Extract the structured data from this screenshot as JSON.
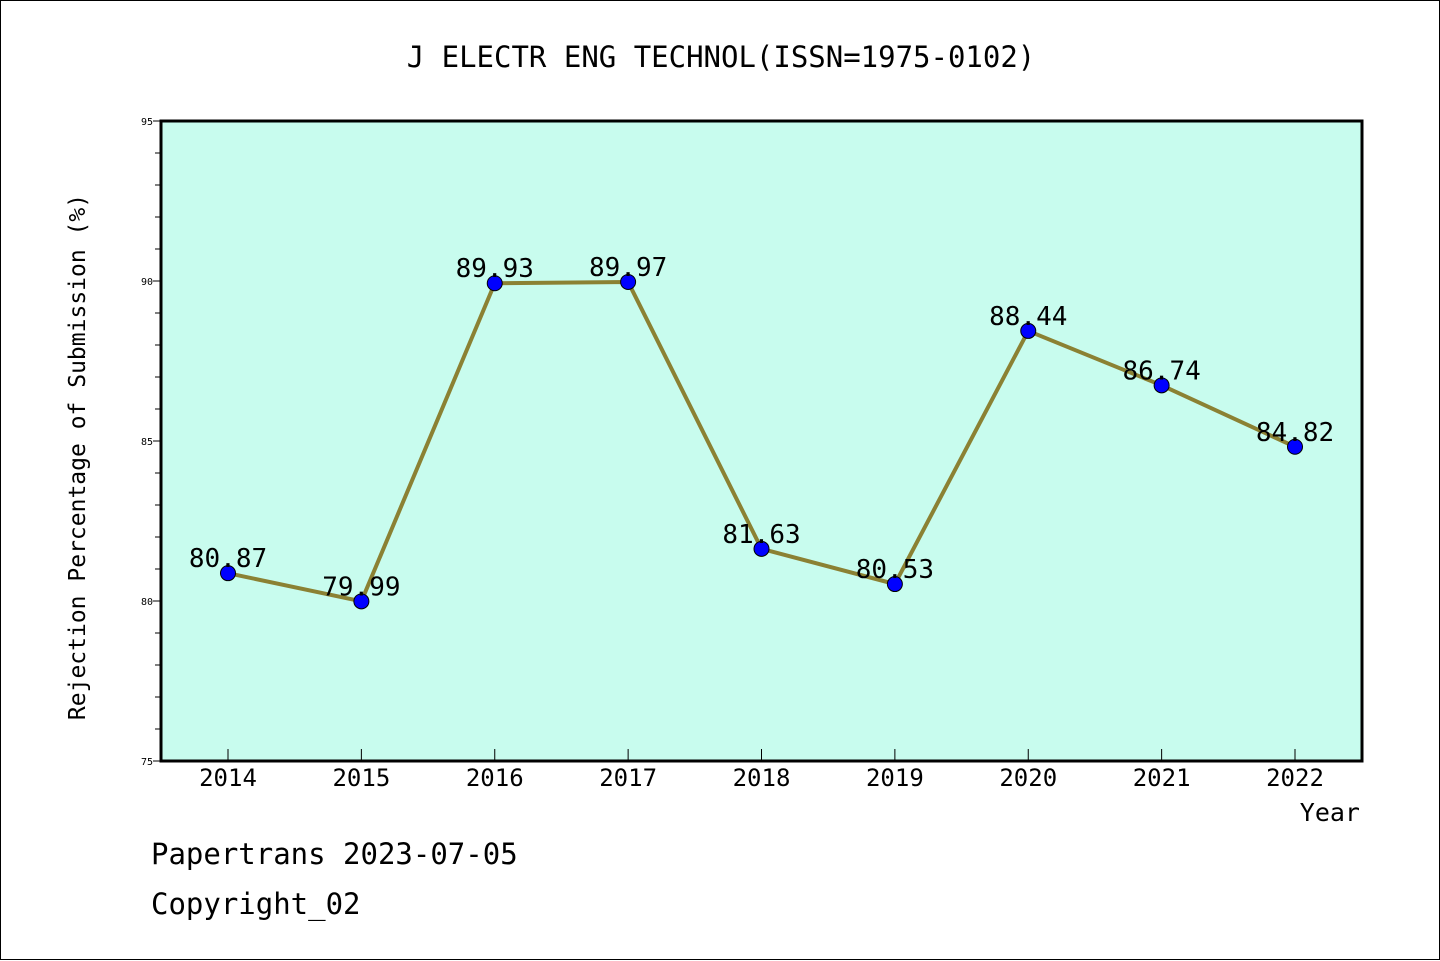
{
  "chart_data": {
    "type": "line",
    "title": "J ELECTR ENG TECHNOL(ISSN=1975-0102)",
    "xlabel": "Year",
    "ylabel": "Rejection Percentage of Submission (%)",
    "categories": [
      "2014",
      "2015",
      "2016",
      "2017",
      "2018",
      "2019",
      "2020",
      "2021",
      "2022"
    ],
    "series": [
      {
        "values": [
          80.87,
          79.99,
          89.93,
          89.97,
          81.63,
          80.53,
          88.44,
          86.74,
          84.82
        ]
      }
    ],
    "data_labels": [
      "80.87",
      "79.99",
      "89.93",
      "89.97",
      "81.63",
      "80.53",
      "88.44",
      "86.74",
      "84.82"
    ],
    "ylim": [
      75,
      95
    ],
    "yticks": [
      "75",
      "80",
      "85",
      "90",
      "95"
    ],
    "grid": false,
    "legend": "none",
    "colors": {
      "plot_background": "#c8fcee",
      "line": "#8b8133",
      "marker": "#0000ff"
    }
  },
  "footer": {
    "line1": "Papertrans 2023-07-05",
    "line2": "Copyright_02"
  }
}
